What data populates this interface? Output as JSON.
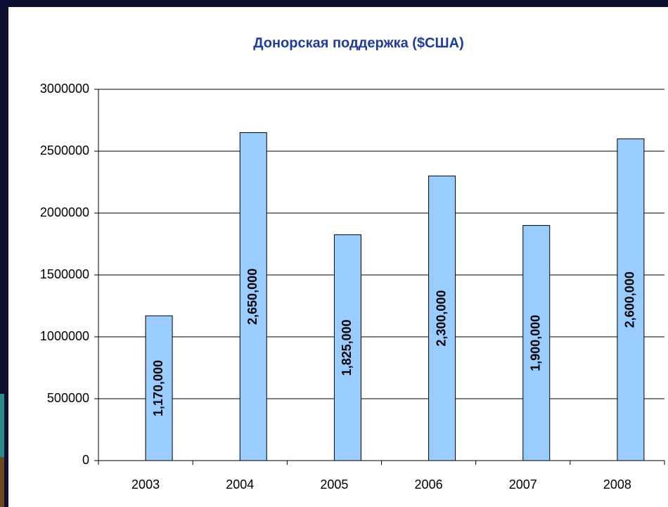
{
  "chart_data": {
    "type": "bar",
    "title": "Донорская поддержка ($США)",
    "categories": [
      "2003",
      "2004",
      "2005",
      "2006",
      "2007",
      "2008"
    ],
    "values": [
      1170000,
      2650000,
      1825000,
      2300000,
      1900000,
      2600000
    ],
    "value_labels": [
      "1,170,000",
      "2,650,000",
      "1,825,000",
      "2,300,000",
      "1,900,000",
      "2,600,000"
    ],
    "color": "#99ccff",
    "ylim": [
      0,
      3000000
    ],
    "yticks": [
      0,
      500000,
      1000000,
      1500000,
      2000000,
      2500000,
      3000000
    ],
    "grid": true
  }
}
